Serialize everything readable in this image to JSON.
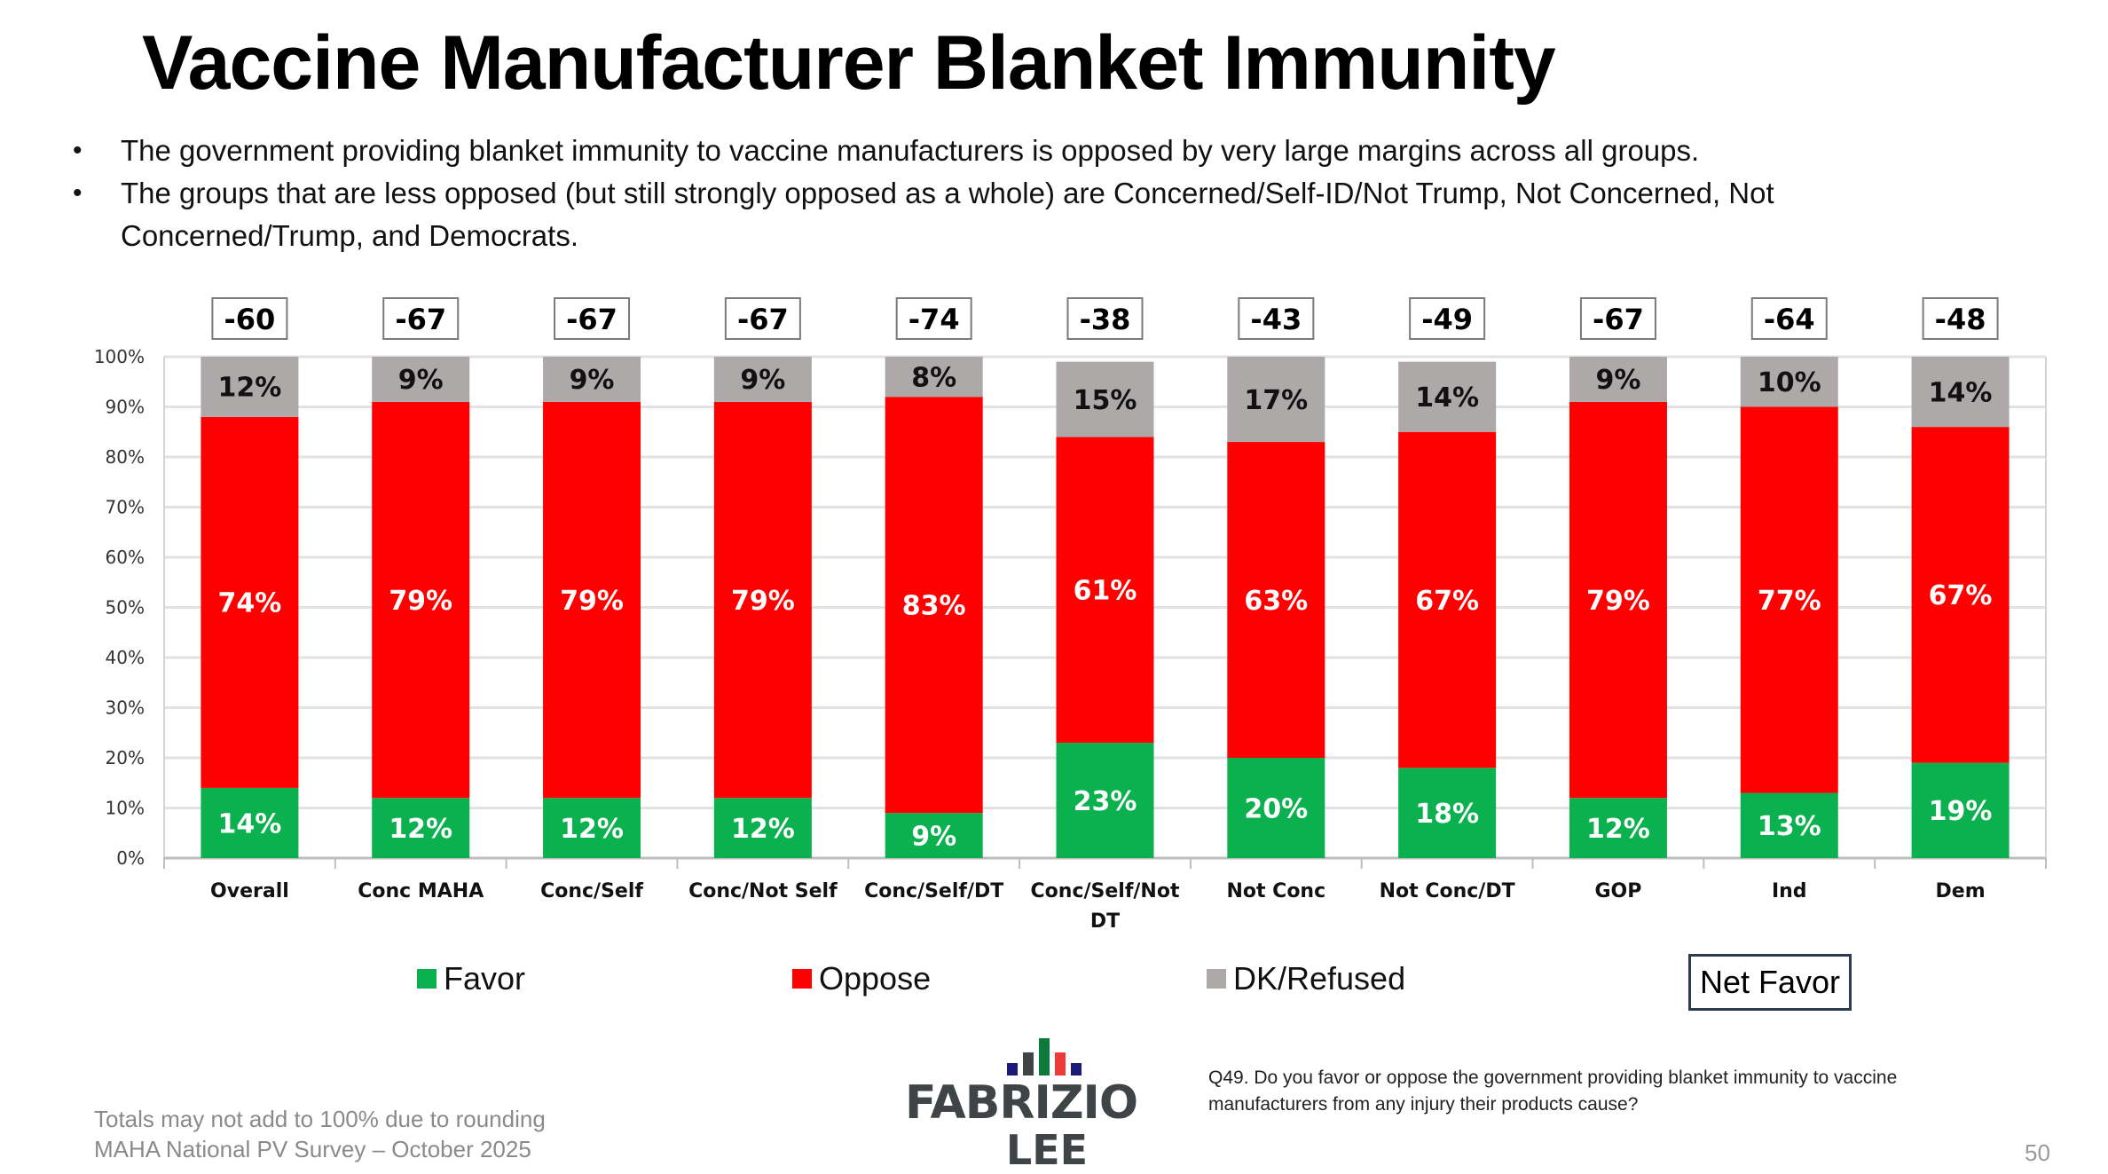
{
  "slide": {
    "title": "Vaccine Manufacturer Blanket Immunity",
    "bullets": [
      "The government providing blanket immunity to vaccine manufacturers is opposed by very large margins across all groups.",
      "The groups that are less opposed (but still strongly opposed as a whole) are Concerned/Self-ID/Not Trump, Not Concerned, Not Concerned/Trump, and Democrats."
    ],
    "footnote": "Totals may not add to 100% due to rounding",
    "footnote2": "MAHA National PV Survey – October 2025",
    "question": "Q49. Do you favor or oppose the government providing blanket immunity to vaccine manufacturers from any injury their products cause?",
    "page_number": "50",
    "logo": {
      "line1": "FABRIZIO",
      "line2": "LEE"
    }
  },
  "colors": {
    "favor": "#0BB04F",
    "oppose": "#FF0000",
    "dk": "#ADA9A9",
    "grid": "#E2E2E2",
    "net_box_border": "#2E3A4F",
    "logo_navy": "#1B1A7A",
    "logo_gray": "#3F4447",
    "logo_green": "#0E7A3A",
    "logo_red": "#F03A3A"
  },
  "chart_data": {
    "type": "bar",
    "stacked": true,
    "title": "Vaccine Manufacturer Blanket Immunity",
    "xlabel": "",
    "ylabel": "",
    "ylim": [
      0,
      100
    ],
    "yticks": [
      "0%",
      "10%",
      "20%",
      "30%",
      "40%",
      "50%",
      "60%",
      "70%",
      "80%",
      "90%",
      "100%"
    ],
    "grid": true,
    "legend_position": "bottom",
    "categories": [
      "Overall",
      "Conc MAHA",
      "Conc/Self",
      "Conc/Not Self",
      "Conc/Self/DT",
      "Conc/Self/Not DT",
      "Not Conc",
      "Not Conc/DT",
      "GOP",
      "Ind",
      "Dem"
    ],
    "series": [
      {
        "name": "Favor",
        "values": [
          14,
          12,
          12,
          12,
          9,
          23,
          20,
          18,
          12,
          13,
          19
        ]
      },
      {
        "name": "Oppose",
        "values": [
          74,
          79,
          79,
          79,
          83,
          61,
          63,
          67,
          79,
          77,
          67
        ]
      },
      {
        "name": "DK/Refused",
        "values": [
          12,
          9,
          9,
          9,
          8,
          15,
          17,
          14,
          9,
          10,
          14
        ]
      }
    ],
    "net_favor": {
      "name": "Net Favor",
      "values": [
        -60,
        -67,
        -67,
        -67,
        -74,
        -38,
        -43,
        -49,
        -67,
        -64,
        -48
      ]
    }
  }
}
